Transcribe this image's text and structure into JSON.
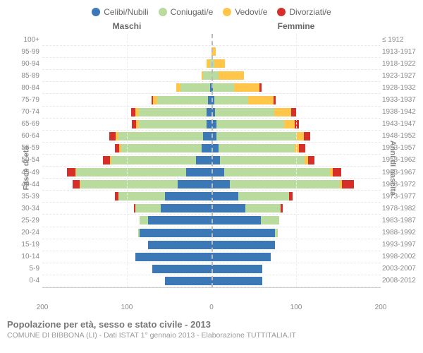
{
  "legend": [
    {
      "label": "Celibi/Nubili",
      "color": "#3b78b5"
    },
    {
      "label": "Coniugati/e",
      "color": "#b9db9d"
    },
    {
      "label": "Vedovi/e",
      "color": "#ffc64a"
    },
    {
      "label": "Divorziati/e",
      "color": "#d62f2a"
    }
  ],
  "gender": {
    "male": "Maschi",
    "female": "Femmine"
  },
  "y_left_label": "Fasce di età",
  "y_right_label": "Anni di nascita",
  "x_ticks": [
    200,
    100,
    0,
    100,
    200
  ],
  "x_max": 200,
  "title": "Popolazione per età, sesso e stato civile - 2013",
  "subtitle": "COMUNE DI BIBBONA (LI) - Dati ISTAT 1° gennaio 2013 - Elaborazione TUTTITALIA.IT",
  "colors": {
    "single": "#3b78b5",
    "married": "#b9db9d",
    "widowed": "#ffc64a",
    "divorced": "#d62f2a",
    "grid": "#e8e8e8",
    "center": "#bbbbbb",
    "text": "#888888",
    "bg": "#ffffff"
  },
  "rows": [
    {
      "age": "100+",
      "year": "≤ 1912",
      "m": [
        0,
        0,
        0,
        0
      ],
      "f": [
        0,
        0,
        0,
        0
      ]
    },
    {
      "age": "95-99",
      "year": "1913-1917",
      "m": [
        0,
        0,
        0,
        0
      ],
      "f": [
        0,
        0,
        5,
        0
      ]
    },
    {
      "age": "90-94",
      "year": "1918-1922",
      "m": [
        0,
        2,
        4,
        0
      ],
      "f": [
        0,
        3,
        13,
        0
      ]
    },
    {
      "age": "85-89",
      "year": "1923-1927",
      "m": [
        0,
        10,
        2,
        0
      ],
      "f": [
        0,
        8,
        30,
        0
      ]
    },
    {
      "age": "80-84",
      "year": "1928-1932",
      "m": [
        2,
        35,
        5,
        0
      ],
      "f": [
        2,
        25,
        30,
        2
      ]
    },
    {
      "age": "75-79",
      "year": "1933-1937",
      "m": [
        4,
        60,
        5,
        2
      ],
      "f": [
        3,
        40,
        30,
        3
      ]
    },
    {
      "age": "70-74",
      "year": "1938-1942",
      "m": [
        6,
        80,
        4,
        5
      ],
      "f": [
        4,
        70,
        20,
        6
      ]
    },
    {
      "age": "65-69",
      "year": "1943-1947",
      "m": [
        6,
        80,
        3,
        5
      ],
      "f": [
        6,
        80,
        12,
        5
      ]
    },
    {
      "age": "60-64",
      "year": "1948-1952",
      "m": [
        10,
        100,
        3,
        8
      ],
      "f": [
        6,
        95,
        8,
        8
      ]
    },
    {
      "age": "55-59",
      "year": "1953-1957",
      "m": [
        12,
        95,
        2,
        5
      ],
      "f": [
        8,
        90,
        5,
        8
      ]
    },
    {
      "age": "50-54",
      "year": "1958-1962",
      "m": [
        18,
        100,
        2,
        8
      ],
      "f": [
        10,
        100,
        4,
        8
      ]
    },
    {
      "age": "45-49",
      "year": "1963-1967",
      "m": [
        30,
        130,
        1,
        10
      ],
      "f": [
        15,
        125,
        3,
        10
      ]
    },
    {
      "age": "40-44",
      "year": "1968-1972",
      "m": [
        40,
        115,
        1,
        8
      ],
      "f": [
        22,
        130,
        2,
        14
      ]
    },
    {
      "age": "35-39",
      "year": "1973-1977",
      "m": [
        55,
        55,
        0,
        4
      ],
      "f": [
        32,
        60,
        0,
        4
      ]
    },
    {
      "age": "30-34",
      "year": "1978-1982",
      "m": [
        60,
        30,
        0,
        2
      ],
      "f": [
        40,
        42,
        0,
        2
      ]
    },
    {
      "age": "25-29",
      "year": "1983-1987",
      "m": [
        75,
        10,
        0,
        0
      ],
      "f": [
        58,
        22,
        0,
        0
      ]
    },
    {
      "age": "20-24",
      "year": "1988-1992",
      "m": [
        85,
        2,
        0,
        0
      ],
      "f": [
        75,
        3,
        0,
        0
      ]
    },
    {
      "age": "15-19",
      "year": "1993-1997",
      "m": [
        75,
        0,
        0,
        0
      ],
      "f": [
        75,
        0,
        0,
        0
      ]
    },
    {
      "age": "10-14",
      "year": "1998-2002",
      "m": [
        90,
        0,
        0,
        0
      ],
      "f": [
        70,
        0,
        0,
        0
      ]
    },
    {
      "age": "5-9",
      "year": "2003-2007",
      "m": [
        70,
        0,
        0,
        0
      ],
      "f": [
        60,
        0,
        0,
        0
      ]
    },
    {
      "age": "0-4",
      "year": "2008-2012",
      "m": [
        55,
        0,
        0,
        0
      ],
      "f": [
        60,
        0,
        0,
        0
      ]
    }
  ]
}
